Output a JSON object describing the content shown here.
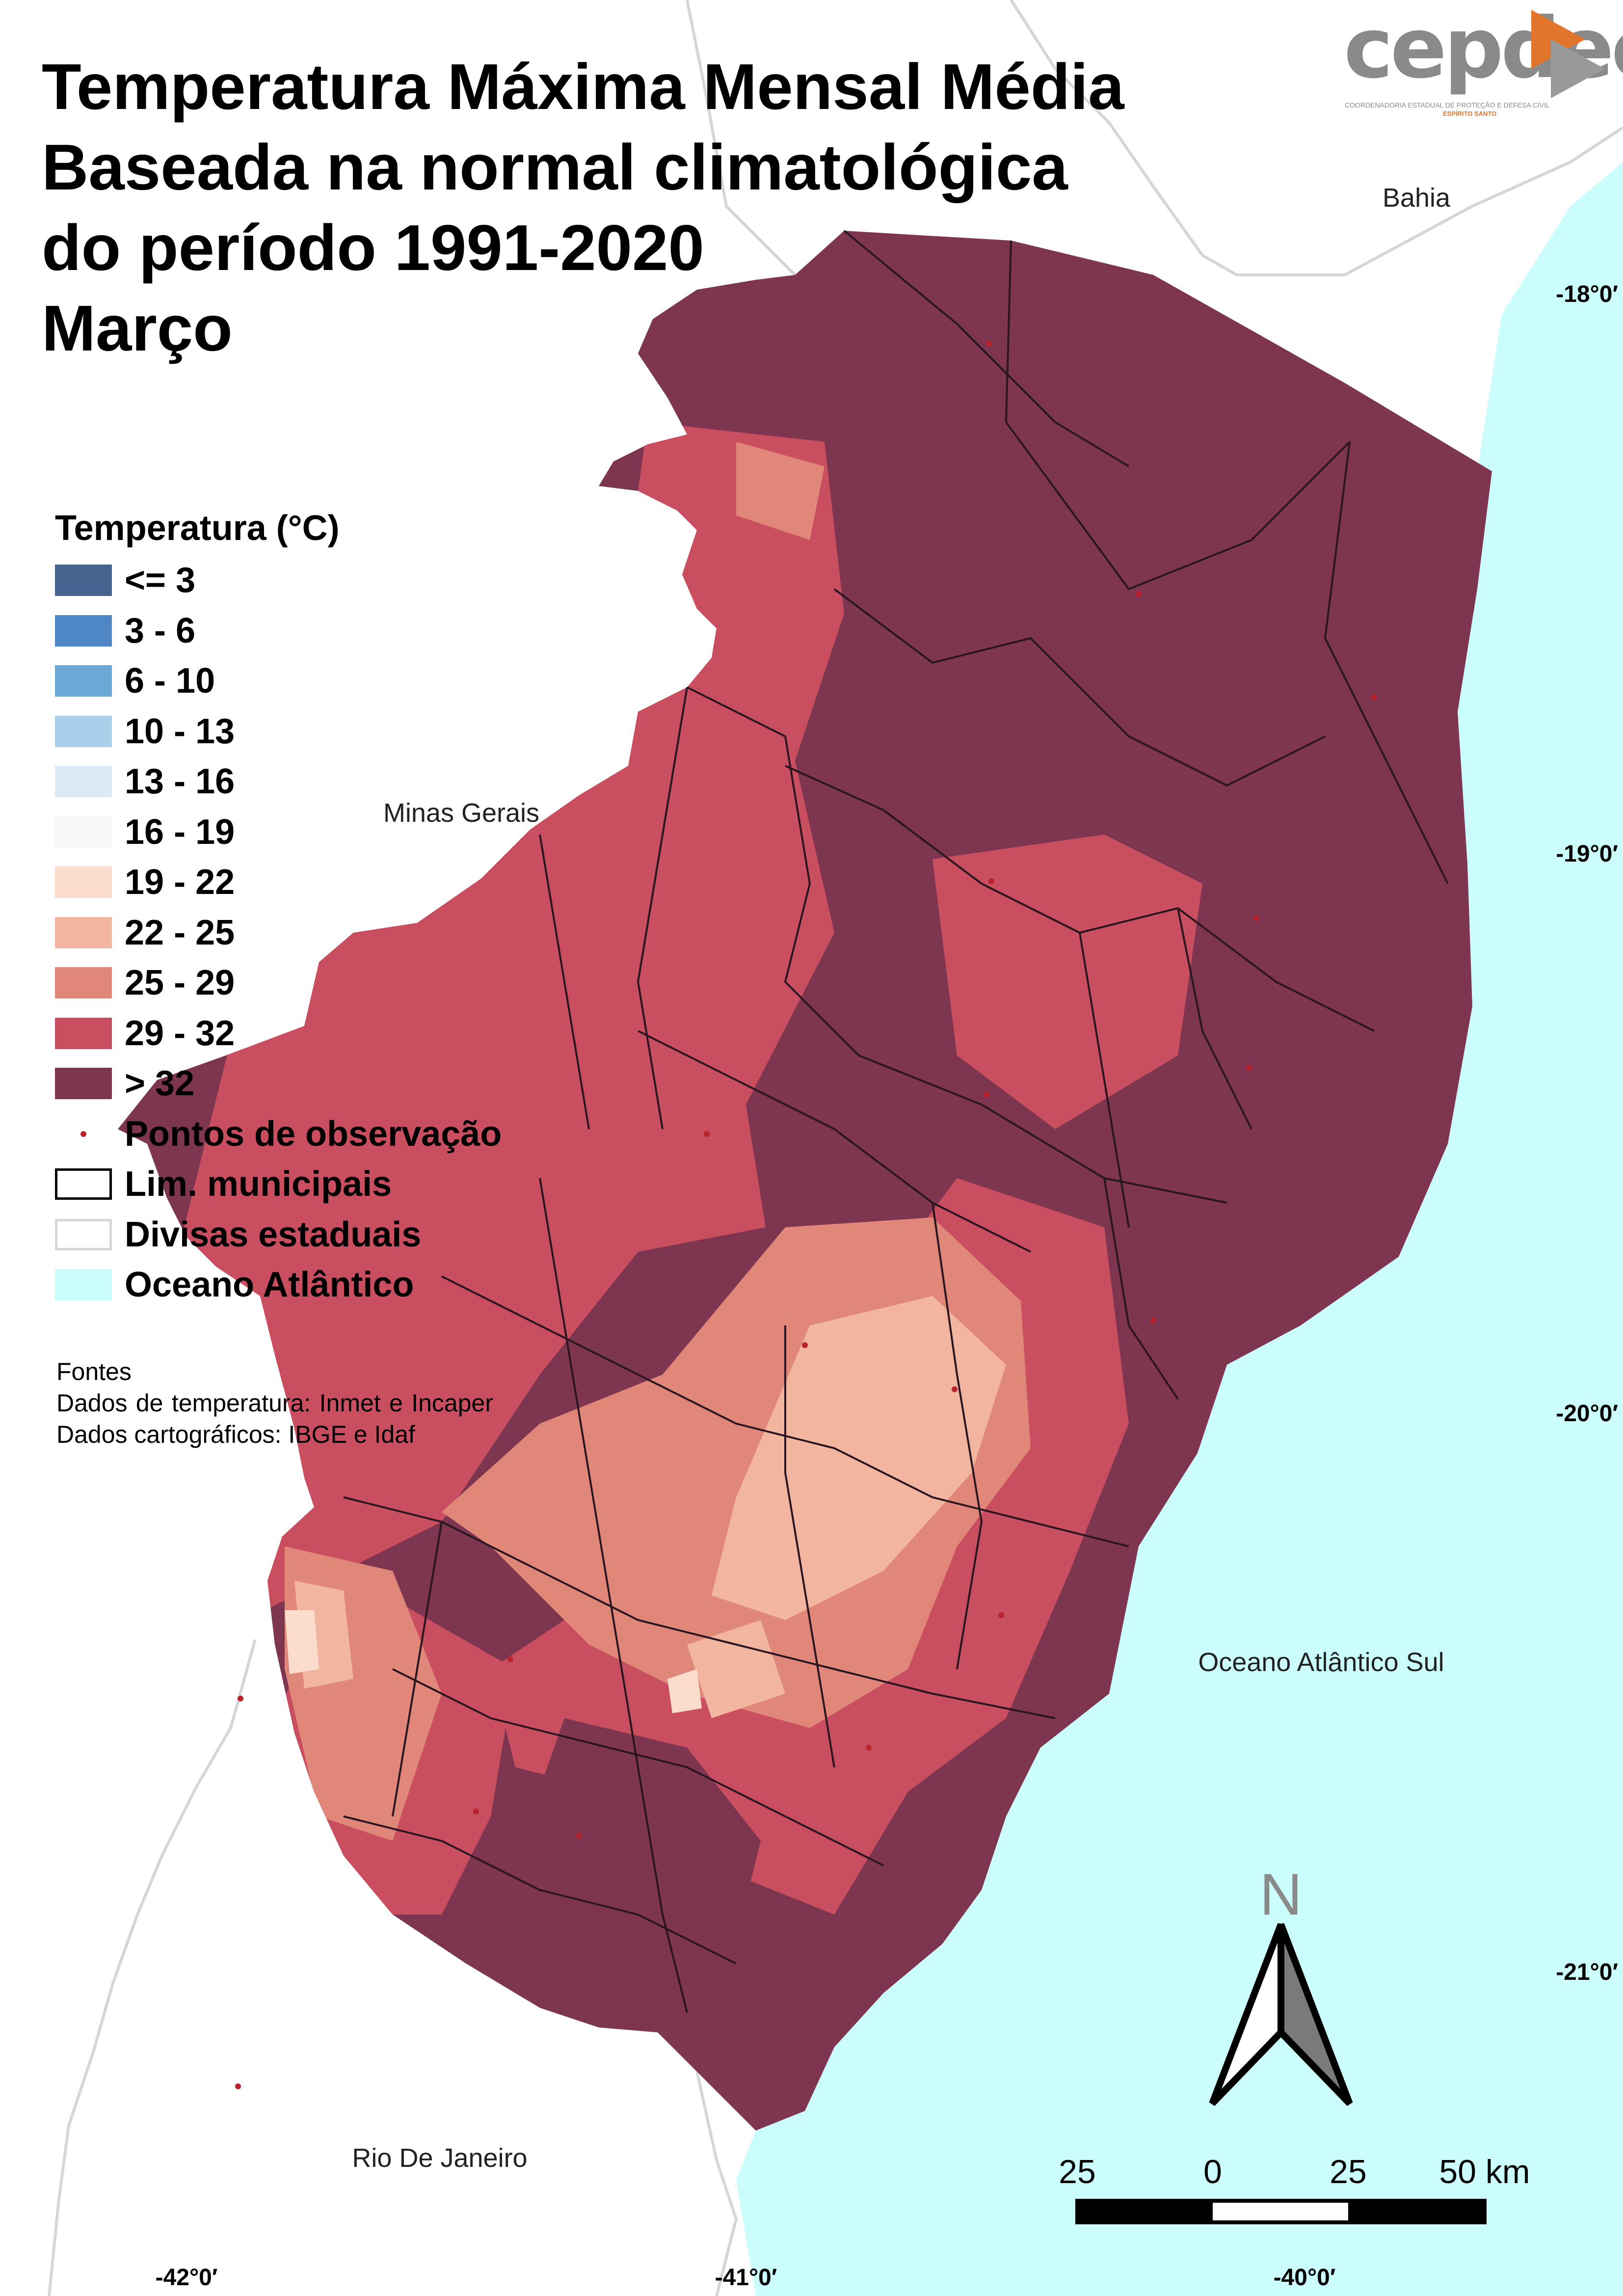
{
  "title": {
    "line1": "Temperatura Máxima Mensal Média",
    "line2": "Baseada na normal climatológica",
    "line3": "do período 1991-2020",
    "line4": "Março"
  },
  "logo": {
    "text": "cepdec",
    "subtitle": "COORDENADORIA ESTADUAL DE PROTEÇÃO E DEFESA CIVIL",
    "subtitle2": "ESPÍRITO SANTO"
  },
  "legend": {
    "title": "Temperatura (°C)",
    "classes": [
      {
        "label": "<= 3",
        "color": "#46638f"
      },
      {
        "label": "3 - 6",
        "color": "#4f86c6"
      },
      {
        "label": "6 - 10",
        "color": "#6ba8d6"
      },
      {
        "label": "10 - 13",
        "color": "#a9d0ea"
      },
      {
        "label": "13 - 16",
        "color": "#dbeaf4"
      },
      {
        "label": "16 - 19",
        "color": "#f7f7f7"
      },
      {
        "label": "19 - 22",
        "color": "#fbdccd"
      },
      {
        "label": "22 - 25",
        "color": "#f2b5a0"
      },
      {
        "label": "25 - 29",
        "color": "#e1877a"
      },
      {
        "label": "29 - 32",
        "color": "#c94e5f"
      },
      {
        "label": "> 32",
        "color": "#7e3650"
      }
    ],
    "observation_points": "Pontos de observação",
    "municipal_limits": "Lim. municipais",
    "state_borders": "Divisas estaduais",
    "ocean": "Oceano Atlântico",
    "ocean_color": "#ccfdfd"
  },
  "sources": {
    "heading": "Fontes",
    "temperature": "Dados de temperatura: Inmet e Incaper",
    "cartographic": "Dados cartográficos: IBGE e Idaf"
  },
  "regions": {
    "bahia": "Bahia",
    "minas": "Minas Gerais",
    "ocean_south": "Oceano Atlântico Sul",
    "rio": "Rio De Janeiro"
  },
  "coordinates": {
    "lat_18": "-18°0′",
    "lat_19": "-19°0′",
    "lat_20": "-20°0′",
    "lat_21": "-21°0′",
    "lon_42": "-42°0′",
    "lon_41": "-41°0′",
    "lon_40": "-40°0′"
  },
  "north_arrow": {
    "label": "N"
  },
  "scale_bar": {
    "labels": [
      "25",
      "0",
      "25",
      "50 km"
    ]
  }
}
